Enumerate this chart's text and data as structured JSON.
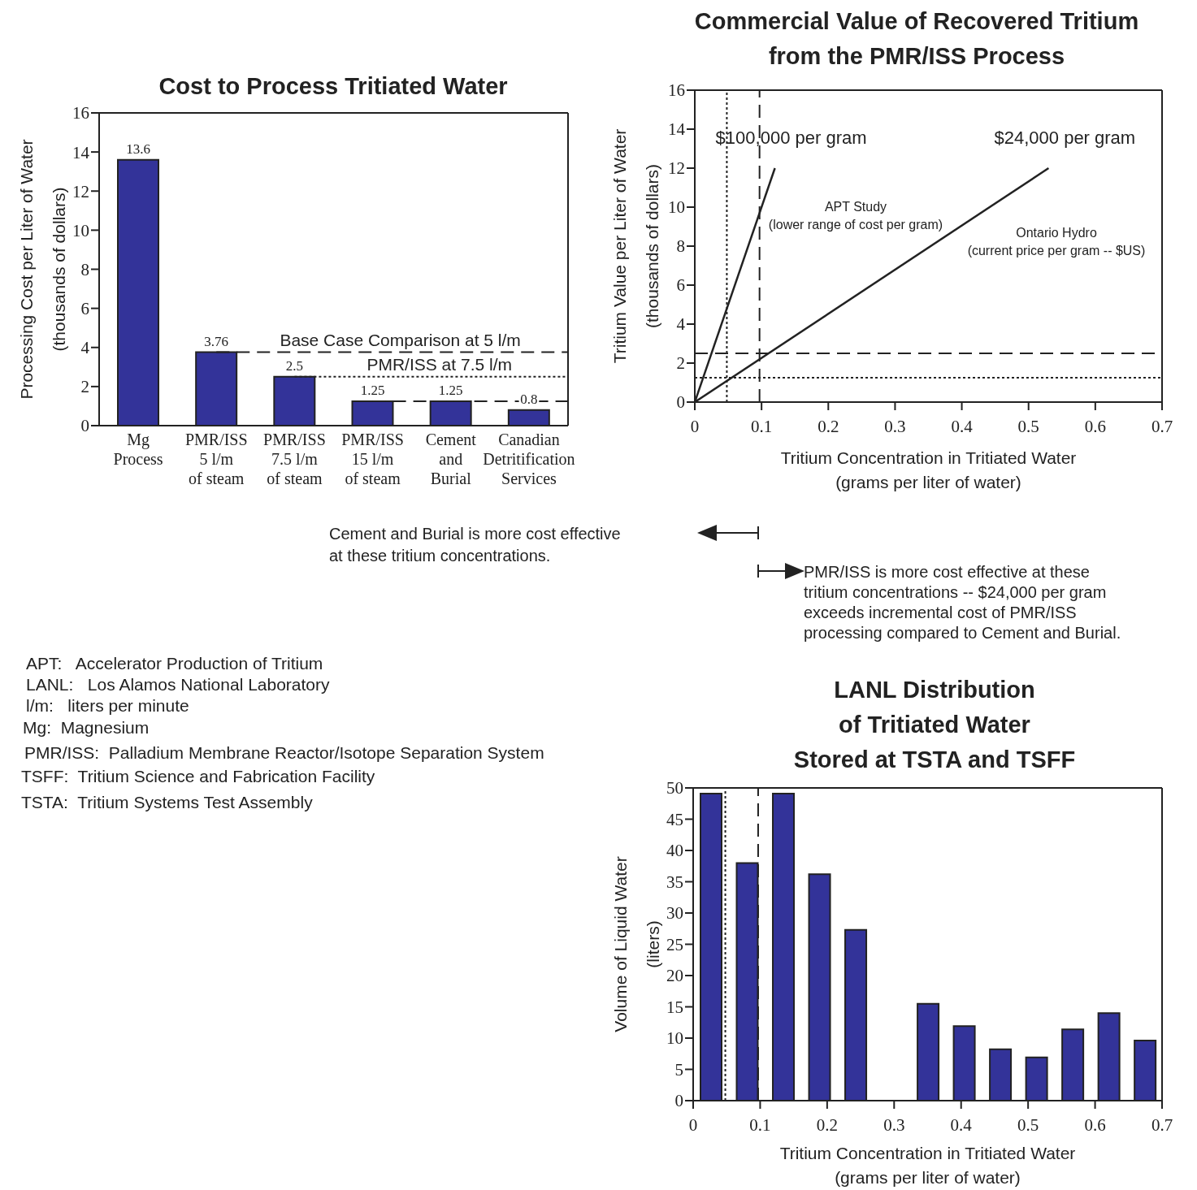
{
  "chart_data": [
    {
      "type": "bar",
      "title": "Cost to Process Tritiated Water",
      "ylabel": "Processing Cost per Liter of Water\n(thousands of dollars)",
      "categories": [
        "Mg\nProcess",
        "PMR/ISS\n5 l/m\nof steam",
        "PMR/ISS\n7.5 l/m\nof steam",
        "PMR/ISS\n15 l/m\nof steam",
        "Cement\nand\nBurial",
        "Canadian\nDetritification\nServices"
      ],
      "values": [
        13.6,
        3.76,
        2.5,
        1.25,
        1.25,
        0.8
      ],
      "color": "#333399",
      "ylim": [
        0,
        16
      ],
      "yticks": [
        0,
        2,
        4,
        6,
        8,
        10,
        12,
        14,
        16
      ],
      "data_labels": true,
      "ref_lines": [
        {
          "axis": "y",
          "value": 3.76,
          "label": "Base Case Comparison at 5 l/m",
          "line_style": "dashed"
        },
        {
          "axis": "y",
          "value": 2.5,
          "label": "PMR/ISS at 7.5 l/m",
          "line_style": "dotted"
        },
        {
          "axis": "y",
          "value": 1.25,
          "line_style": "dashed"
        }
      ]
    },
    {
      "type": "line",
      "title": "Commercial Value of Recovered Tritium\nfrom the PMR/ISS Process",
      "xlabel": "Tritium Concentration in Tritiated Water\n(grams per liter of water)",
      "ylabel": "Tritium Value per Liter of Water\n(thousands of dollars)",
      "series": [
        {
          "name": "$100,000 per gram",
          "color": "#222222",
          "x": [
            0,
            0.12
          ],
          "values": [
            0,
            12
          ]
        },
        {
          "name": "$24,000 per gram",
          "color": "#222222",
          "x": [
            0,
            0.53
          ],
          "values": [
            0,
            12
          ]
        }
      ],
      "xlim": [
        0,
        0.7
      ],
      "xticks": [
        0,
        0.1,
        0.2,
        0.3,
        0.4,
        0.5,
        0.6,
        0.7
      ],
      "ylim": [
        0,
        16
      ],
      "yticks": [
        0,
        2,
        4,
        6,
        8,
        10,
        12,
        14,
        16
      ],
      "ref_lines": [
        {
          "axis": "y",
          "value": 2.5,
          "line_style": "dashed"
        },
        {
          "axis": "y",
          "value": 1.25,
          "line_style": "dotted"
        },
        {
          "axis": "x",
          "value": 0.097,
          "line_style": "dashed"
        },
        {
          "axis": "x",
          "value": 0.048,
          "line_style": "dotted"
        }
      ],
      "annotations": [
        "APT Study\n(lower range of cost per gram)",
        "Ontario Hydro\n(current price per gram -- $US)"
      ]
    },
    {
      "type": "bar",
      "title": "LANL Distribution\nof Tritiated Water\nStored at TSTA and TSFF",
      "xlabel": "Tritium Concentration in Tritiated Water\n(grams per liter of water)",
      "ylabel": "Volume of Liquid Water\n(liters)",
      "x": [
        0.027,
        0.081,
        0.135,
        0.189,
        0.243,
        0.297,
        0.351,
        0.405,
        0.459,
        0.513,
        0.567,
        0.621,
        0.675
      ],
      "values": [
        49.1,
        38,
        49.1,
        36.2,
        27.3,
        null,
        15.5,
        11.9,
        8.2,
        6.9,
        11.4,
        14,
        9.6
      ],
      "color": "#333399",
      "xlim": [
        0,
        0.7
      ],
      "xticks": [
        0,
        0.1,
        0.2,
        0.3,
        0.4,
        0.5,
        0.6,
        0.7
      ],
      "ylim": [
        0,
        50
      ],
      "yticks": [
        0,
        5,
        10,
        15,
        20,
        25,
        30,
        35,
        40,
        45,
        50
      ],
      "ref_lines": [
        {
          "axis": "x",
          "value": 0.097,
          "line_style": "dashed"
        },
        {
          "axis": "x",
          "value": 0.048,
          "line_style": "dotted"
        }
      ]
    },
    {
      "type": "other",
      "annotations": [
        "Cement and Burial is more cost effective\nat these tritium concentrations.",
        "PMR/ISS is more cost effective at these\ntritium concentrations -- $24,000 per gram\nexceeds incremental cost of PMR/ISS\nprocessing compared to Cement and Burial.",
        "APT:   Accelerator Production of Tritium",
        "LANL:   Los Alamos National Laboratory",
        "l/m:   liters per minute",
        "Mg:  Magnesium",
        "PMR/ISS:  Palladium Membrane Reactor/Isotope Separation System",
        "TSFF:  Tritium Science and Fabrication Facility",
        "TSTA:  Tritium Systems Test Assembly"
      ]
    }
  ]
}
